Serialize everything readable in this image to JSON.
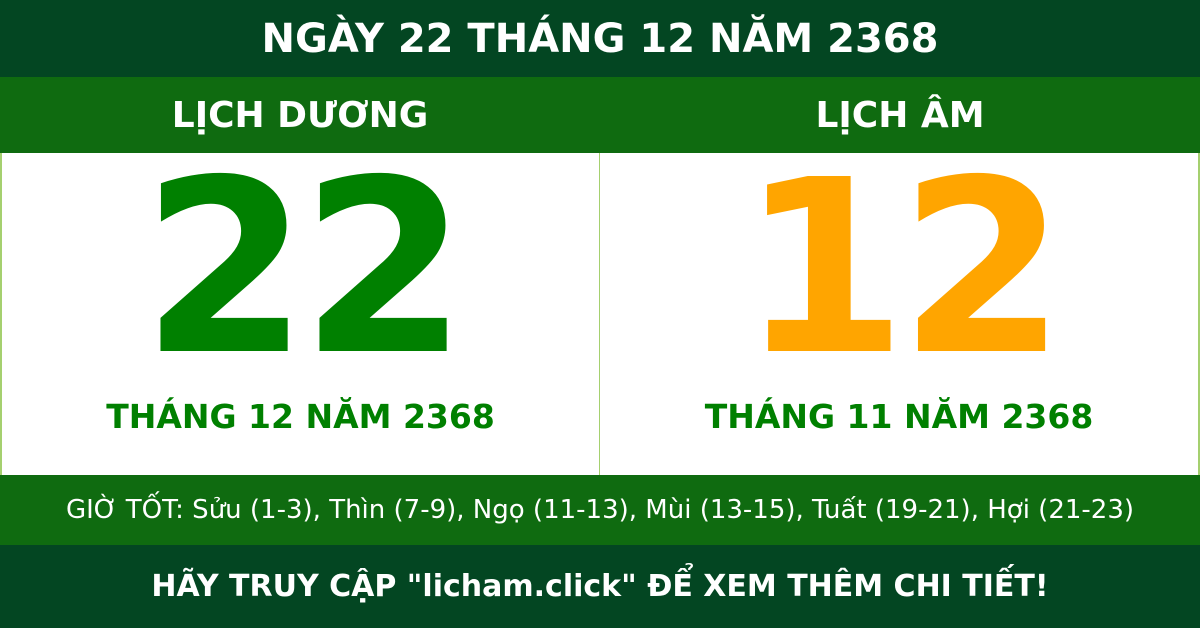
{
  "title": "NGÀY 22 THÁNG 12 NĂM 2368",
  "solar": {
    "heading": "LỊCH DƯƠNG",
    "day": "22",
    "month_year": "THÁNG 12 NĂM 2368"
  },
  "lunar": {
    "heading": "LỊCH ÂM",
    "day": "12",
    "month_year": "THÁNG 11 NĂM 2368"
  },
  "good_hours": "GIỜ TỐT: Sửu (1-3), Thìn (7-9), Ngọ (11-13), Mùi (13-15), Tuất (19-21), Hợi (21-23)",
  "footer": "HÃY TRUY CẬP \"licham.click\" ĐỂ XEM THÊM CHI TIẾT!",
  "colors": {
    "dark_green": "#034622",
    "band_green": "#0f6b10",
    "solar_green": "#008000",
    "lunar_orange": "#ffa500"
  }
}
